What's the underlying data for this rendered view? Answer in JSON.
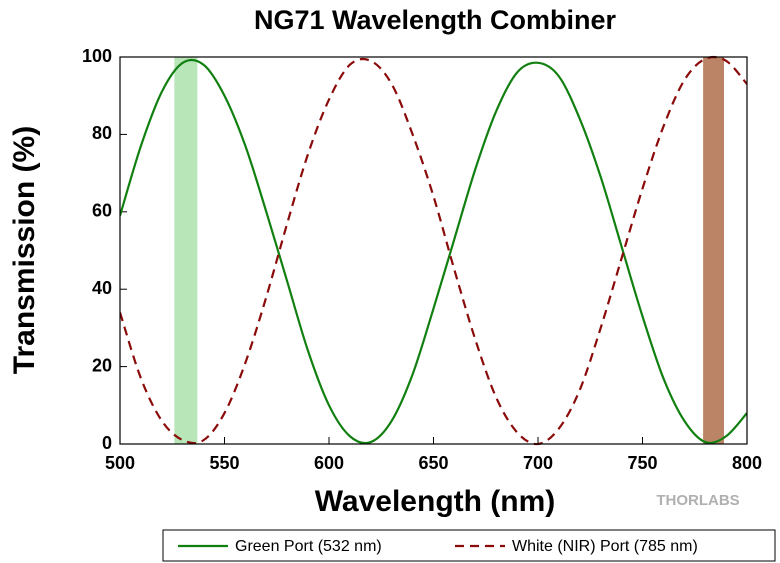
{
  "chart_data": {
    "type": "line",
    "title": "NG71 Wavelength Combiner",
    "x_label": "Wavelength (nm)",
    "y_label": "Transmission (%)",
    "watermark": "THORLABS",
    "x": [
      500,
      510,
      520,
      530,
      540,
      550,
      560,
      570,
      580,
      590,
      600,
      610,
      620,
      630,
      640,
      650,
      660,
      670,
      680,
      690,
      700,
      710,
      720,
      730,
      740,
      750,
      760,
      770,
      780,
      790,
      800
    ],
    "series": [
      {
        "name": "Green Port (532 nm)",
        "color": "#118011",
        "dashed": false,
        "values": [
          59,
          77,
          91,
          98.5,
          98,
          90,
          77,
          60,
          42,
          24,
          10,
          2,
          0.5,
          6,
          18,
          35,
          53,
          71,
          86,
          96,
          98.5,
          95,
          84,
          69,
          51,
          33,
          17,
          6,
          0.5,
          2,
          8
        ]
      },
      {
        "name": "White (NIR) Port (785 nm)",
        "color": "#8b0a0a",
        "dashed": true,
        "values": [
          34,
          17,
          6,
          1,
          1,
          8,
          21,
          38,
          57,
          75,
          89,
          98,
          99,
          93,
          80,
          64,
          45,
          27,
          12,
          3,
          0,
          4,
          14,
          30,
          48,
          66,
          82,
          94,
          99.5,
          99,
          93
        ]
      }
    ],
    "bands": [
      {
        "xrange": [
          526,
          537
        ],
        "color": "#b9e6b9"
      },
      {
        "xrange": [
          779,
          789
        ],
        "color": "#bb8466"
      }
    ],
    "xlim": [
      500,
      800
    ],
    "xticks": [
      500,
      550,
      600,
      650,
      700,
      750,
      800
    ],
    "ylim": [
      0,
      100
    ],
    "yticks": [
      0,
      20,
      40,
      60,
      80,
      100
    ],
    "grid": false,
    "legend": "bottom"
  }
}
